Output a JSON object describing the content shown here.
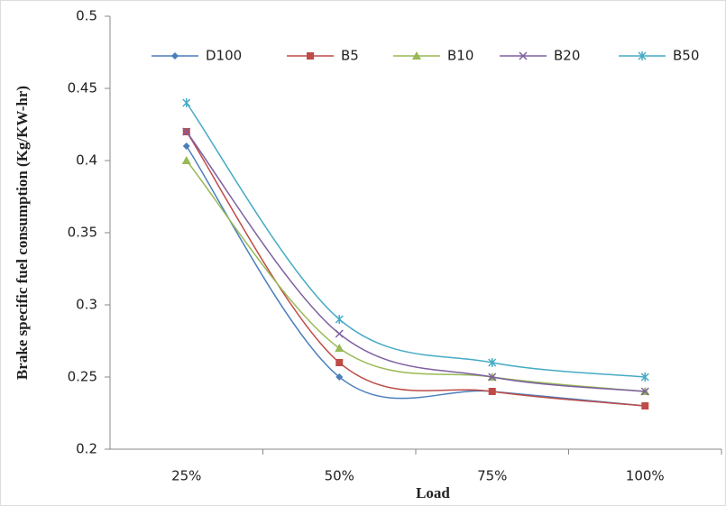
{
  "chart_data": {
    "type": "line",
    "x_label": "Load",
    "y_label": "Brake specific fuel consumption (Kg/KW-hr)",
    "categories": [
      "25%",
      "50%",
      "75%",
      "100%"
    ],
    "series": [
      {
        "name": "D100",
        "color": "#4a7ebb",
        "marker": "diamond",
        "values": [
          0.41,
          0.25,
          0.24,
          0.23
        ]
      },
      {
        "name": "B5",
        "color": "#be4b48",
        "marker": "square",
        "values": [
          0.42,
          0.26,
          0.24,
          0.23
        ]
      },
      {
        "name": "B10",
        "color": "#98b954",
        "marker": "triangle",
        "values": [
          0.4,
          0.27,
          0.25,
          0.24
        ]
      },
      {
        "name": "B20",
        "color": "#7d60a0",
        "marker": "x",
        "values": [
          0.42,
          0.28,
          0.25,
          0.24
        ]
      },
      {
        "name": "B50",
        "color": "#46aac5",
        "marker": "star",
        "values": [
          0.44,
          0.29,
          0.26,
          0.25
        ]
      }
    ],
    "ylim": [
      0.2,
      0.5
    ],
    "yticks": [
      0.2,
      0.25,
      0.3,
      0.35,
      0.4,
      0.45,
      0.5
    ],
    "smooth": true,
    "legend": "top"
  }
}
